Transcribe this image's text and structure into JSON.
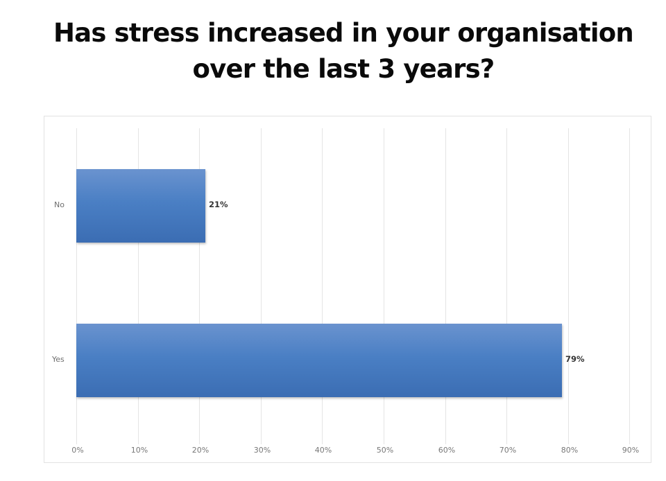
{
  "title_line1": "Has stress increased in your organisation",
  "title_line2": "over the last 3 years?",
  "chart_data": {
    "type": "bar",
    "orientation": "horizontal",
    "title": "Has stress increased in your organisation over the last 3 years?",
    "categories": [
      "No",
      "Yes"
    ],
    "values": [
      21,
      79
    ],
    "value_labels": [
      "21%",
      "79%"
    ],
    "xlabel": "",
    "ylabel": "",
    "xlim": [
      0,
      90
    ],
    "x_ticks": [
      "0%",
      "10%",
      "20%",
      "30%",
      "40%",
      "50%",
      "60%",
      "70%",
      "80%",
      "90%"
    ],
    "grid": "vertical",
    "legend": "none",
    "bar_color": "#4a7fc4"
  }
}
